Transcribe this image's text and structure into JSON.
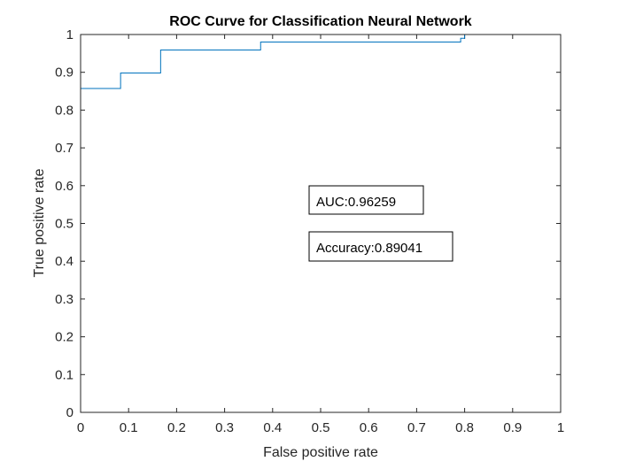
{
  "chart_data": {
    "type": "line",
    "title": "ROC Curve for Classification Neural Network",
    "xlabel": "False positive rate",
    "ylabel": "True positive rate",
    "xlim": [
      0,
      1
    ],
    "ylim": [
      0,
      1
    ],
    "xticks": [
      0,
      0.1,
      0.2,
      0.3,
      0.4,
      0.5,
      0.6,
      0.7,
      0.8,
      0.9,
      1
    ],
    "yticks": [
      0,
      0.1,
      0.2,
      0.3,
      0.4,
      0.5,
      0.6,
      0.7,
      0.8,
      0.9,
      1
    ],
    "xtick_labels": [
      "0",
      "0.1",
      "0.2",
      "0.3",
      "0.4",
      "0.5",
      "0.6",
      "0.7",
      "0.8",
      "0.9",
      "1"
    ],
    "ytick_labels": [
      "0",
      "0.1",
      "0.2",
      "0.3",
      "0.4",
      "0.5",
      "0.6",
      "0.7",
      "0.8",
      "0.9",
      "1"
    ],
    "grid": false,
    "series": [
      {
        "color": "#0072bd",
        "x": [
          0,
          0,
          0.0833,
          0.0833,
          0.1667,
          0.1667,
          0.375,
          0.375,
          0.7917,
          0.7917,
          0.8,
          0.8,
          1
        ],
        "y": [
          0,
          0.857,
          0.857,
          0.898,
          0.898,
          0.959,
          0.959,
          0.98,
          0.98,
          0.99,
          0.99,
          1,
          1
        ]
      }
    ],
    "annotations": [
      {
        "text": "AUC:0.96259"
      },
      {
        "text": "Accuracy:0.89041"
      }
    ]
  }
}
